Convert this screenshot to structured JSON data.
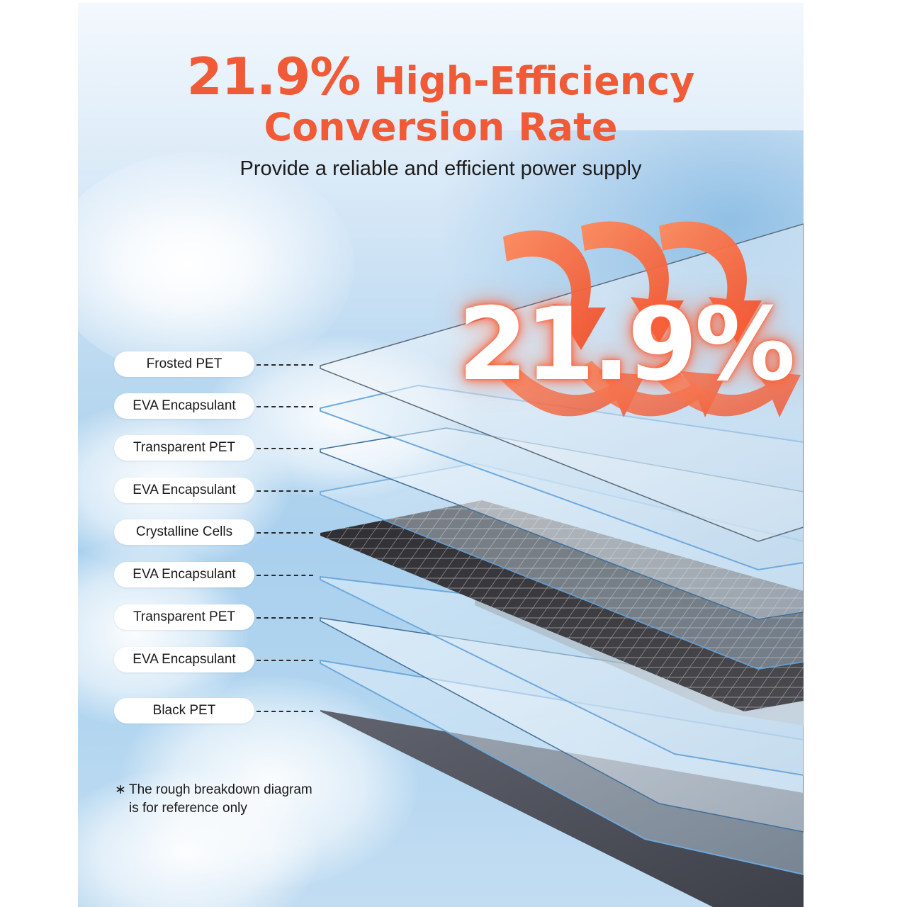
{
  "header": {
    "title_percent": "21.9%",
    "title_rest": " High-Efficiency",
    "title_line2": "Conversion Rate",
    "subtitle": "Provide a reliable and efficient power supply"
  },
  "highlight": {
    "percent": "21.9%"
  },
  "layers": [
    {
      "label": "Frosted PET"
    },
    {
      "label": "EVA Encapsulant"
    },
    {
      "label": "Transparent PET"
    },
    {
      "label": "EVA Encapsulant"
    },
    {
      "label": "Crystalline Cells"
    },
    {
      "label": "EVA Encapsulant"
    },
    {
      "label": "Transparent PET"
    },
    {
      "label": "EVA Encapsulant"
    },
    {
      "label": "Black PET"
    }
  ],
  "footnote": {
    "marker": "∗",
    "line1": "The rough breakdown diagram",
    "line2": "is for reference only"
  },
  "colors": {
    "accent": "#f05a36",
    "arrow": "#f26a43",
    "cell": "#3c3b3f",
    "black_pet": "#5b5d66"
  }
}
